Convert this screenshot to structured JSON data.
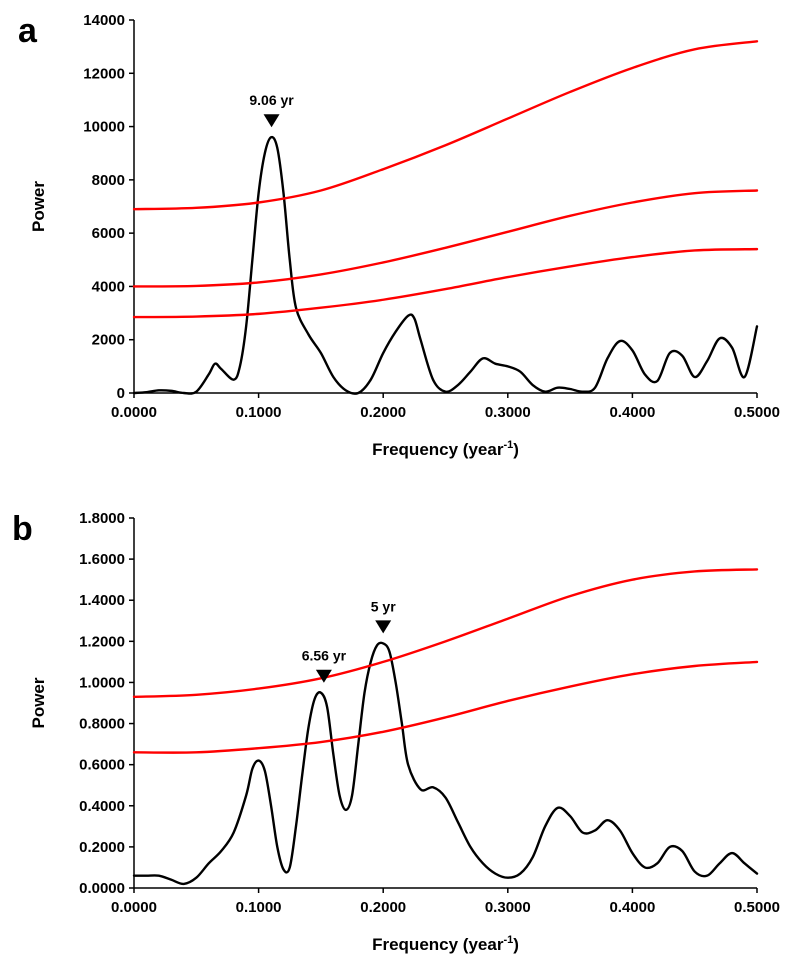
{
  "chart_data": [
    {
      "panel": "a",
      "type": "line",
      "xlabel": "Frequency (year",
      "xlabel_sup": "-1",
      "xlabel_close": ")",
      "ylabel": "Power",
      "xlim": [
        0,
        0.5
      ],
      "ylim": [
        0,
        14000
      ],
      "xticks": [
        0,
        0.1,
        0.2,
        0.3,
        0.4,
        0.5
      ],
      "xtick_labels": [
        "0.0000",
        "0.1000",
        "0.2000",
        "0.3000",
        "0.4000",
        "0.5000"
      ],
      "yticks": [
        0,
        2000,
        4000,
        6000,
        8000,
        10000,
        12000,
        14000
      ],
      "ytick_labels": [
        "0",
        "2000",
        "4000",
        "6000",
        "8000",
        "10000",
        "12000",
        "14000"
      ],
      "grid": false,
      "series": [
        {
          "color": "#000000",
          "x": [
            0.0,
            0.01,
            0.02,
            0.03,
            0.04,
            0.05,
            0.06,
            0.065,
            0.07,
            0.08,
            0.085,
            0.09,
            0.095,
            0.1,
            0.105,
            0.11,
            0.115,
            0.12,
            0.125,
            0.13,
            0.14,
            0.15,
            0.16,
            0.17,
            0.18,
            0.19,
            0.2,
            0.21,
            0.22,
            0.225,
            0.23,
            0.24,
            0.25,
            0.26,
            0.27,
            0.28,
            0.29,
            0.3,
            0.31,
            0.32,
            0.33,
            0.34,
            0.35,
            0.36,
            0.37,
            0.38,
            0.39,
            0.4,
            0.41,
            0.42,
            0.43,
            0.44,
            0.45,
            0.46,
            0.47,
            0.48,
            0.49,
            0.5
          ],
          "y": [
            0,
            30,
            100,
            80,
            0,
            50,
            700,
            1100,
            900,
            500,
            1000,
            2500,
            5000,
            7500,
            9000,
            9600,
            9200,
            7500,
            5000,
            3200,
            2200,
            1500,
            600,
            100,
            0,
            500,
            1500,
            2300,
            2900,
            2800,
            2000,
            500,
            50,
            300,
            800,
            1300,
            1100,
            1000,
            800,
            300,
            50,
            200,
            150,
            50,
            200,
            1300,
            1950,
            1600,
            700,
            450,
            1500,
            1400,
            600,
            1200,
            2050,
            1700,
            600,
            2500
          ]
        },
        {
          "color": "#ff0000",
          "x": [
            0,
            0.05,
            0.1,
            0.15,
            0.2,
            0.25,
            0.3,
            0.35,
            0.4,
            0.45,
            0.5
          ],
          "y": [
            6900,
            6950,
            7150,
            7600,
            8400,
            9300,
            10300,
            11300,
            12200,
            12900,
            13200
          ]
        },
        {
          "color": "#ff0000",
          "x": [
            0,
            0.05,
            0.1,
            0.15,
            0.2,
            0.25,
            0.3,
            0.35,
            0.4,
            0.45,
            0.5
          ],
          "y": [
            4000,
            4020,
            4150,
            4450,
            4900,
            5450,
            6050,
            6650,
            7150,
            7500,
            7600
          ]
        },
        {
          "color": "#ff0000",
          "x": [
            0,
            0.05,
            0.1,
            0.15,
            0.2,
            0.25,
            0.3,
            0.35,
            0.4,
            0.45,
            0.5
          ],
          "y": [
            2850,
            2870,
            2970,
            3200,
            3500,
            3900,
            4350,
            4750,
            5100,
            5350,
            5400
          ]
        }
      ],
      "annotations": [
        {
          "text": "9.06 yr",
          "x": 0.1104,
          "y": 9600
        }
      ]
    },
    {
      "panel": "b",
      "type": "line",
      "xlabel": "Frequency (year",
      "xlabel_sup": "-1",
      "xlabel_close": ")",
      "ylabel": "Power",
      "xlim": [
        0,
        0.5
      ],
      "ylim": [
        0,
        1.8
      ],
      "xticks": [
        0,
        0.1,
        0.2,
        0.3,
        0.4,
        0.5
      ],
      "xtick_labels": [
        "0.0000",
        "0.1000",
        "0.2000",
        "0.3000",
        "0.4000",
        "0.5000"
      ],
      "yticks": [
        0,
        0.2,
        0.4,
        0.6,
        0.8,
        1.0,
        1.2,
        1.4,
        1.6,
        1.8
      ],
      "ytick_labels": [
        "0.0000",
        "0.2000",
        "0.4000",
        "0.6000",
        "0.8000",
        "1.0000",
        "1.2000",
        "1.4000",
        "1.6000",
        "1.8000"
      ],
      "grid": false,
      "series": [
        {
          "color": "#000000",
          "x": [
            0.0,
            0.01,
            0.02,
            0.03,
            0.04,
            0.05,
            0.06,
            0.07,
            0.08,
            0.09,
            0.095,
            0.1,
            0.105,
            0.11,
            0.115,
            0.12,
            0.125,
            0.13,
            0.135,
            0.14,
            0.145,
            0.15,
            0.155,
            0.16,
            0.165,
            0.17,
            0.175,
            0.18,
            0.185,
            0.19,
            0.195,
            0.2,
            0.205,
            0.21,
            0.215,
            0.22,
            0.23,
            0.24,
            0.25,
            0.26,
            0.27,
            0.28,
            0.29,
            0.3,
            0.31,
            0.32,
            0.33,
            0.34,
            0.35,
            0.36,
            0.37,
            0.38,
            0.39,
            0.4,
            0.41,
            0.42,
            0.43,
            0.44,
            0.45,
            0.46,
            0.47,
            0.48,
            0.49,
            0.5
          ],
          "y": [
            0.06,
            0.06,
            0.06,
            0.04,
            0.02,
            0.05,
            0.12,
            0.18,
            0.27,
            0.45,
            0.58,
            0.62,
            0.57,
            0.4,
            0.2,
            0.09,
            0.1,
            0.3,
            0.55,
            0.78,
            0.92,
            0.95,
            0.88,
            0.65,
            0.45,
            0.38,
            0.45,
            0.7,
            0.95,
            1.1,
            1.18,
            1.19,
            1.15,
            1.0,
            0.8,
            0.6,
            0.48,
            0.49,
            0.44,
            0.32,
            0.2,
            0.12,
            0.07,
            0.05,
            0.07,
            0.15,
            0.3,
            0.39,
            0.35,
            0.27,
            0.28,
            0.33,
            0.28,
            0.17,
            0.1,
            0.12,
            0.2,
            0.18,
            0.08,
            0.06,
            0.12,
            0.17,
            0.12,
            0.07
          ]
        },
        {
          "color": "#ff0000",
          "x": [
            0,
            0.05,
            0.1,
            0.15,
            0.2,
            0.25,
            0.3,
            0.35,
            0.4,
            0.45,
            0.5
          ],
          "y": [
            0.93,
            0.94,
            0.97,
            1.02,
            1.1,
            1.2,
            1.31,
            1.42,
            1.5,
            1.54,
            1.55
          ]
        },
        {
          "color": "#ff0000",
          "x": [
            0,
            0.05,
            0.1,
            0.15,
            0.2,
            0.25,
            0.3,
            0.35,
            0.4,
            0.45,
            0.5
          ],
          "y": [
            0.66,
            0.66,
            0.68,
            0.71,
            0.76,
            0.83,
            0.91,
            0.98,
            1.04,
            1.08,
            1.1
          ]
        }
      ],
      "annotations": [
        {
          "text": "6.56 yr",
          "x": 0.1524,
          "y": 0.95
        },
        {
          "text": "5 yr",
          "x": 0.2,
          "y": 1.19
        }
      ]
    }
  ]
}
